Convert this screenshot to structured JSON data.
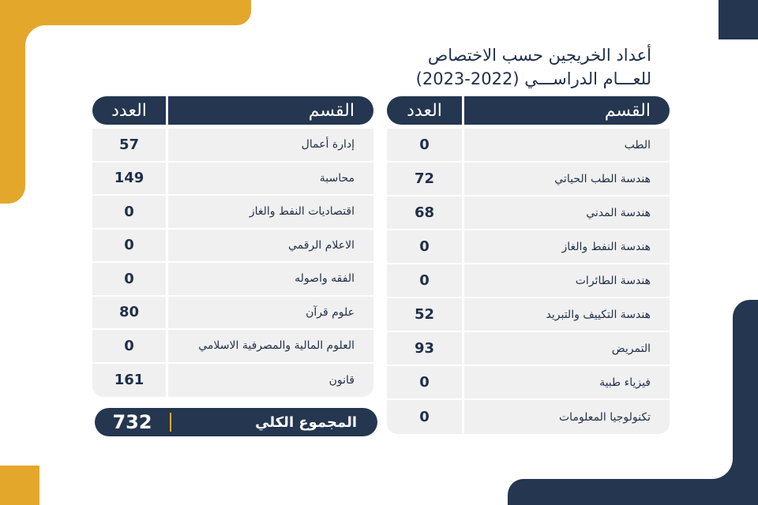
{
  "title": [
    "أعداد الخريجين حسب الاختصاص",
    "للعـــام الدراســـي (2022-2023)"
  ],
  "tables": [
    {
      "headers": [
        "القسم",
        "العدد"
      ],
      "rows": [
        [
          "الطب",
          0
        ],
        [
          "هندسة الطب الحياتي",
          72
        ],
        [
          "هندسة المدني",
          68
        ],
        [
          "هندسة النفط والغاز",
          0
        ],
        [
          "هندسة الطائرات",
          0
        ],
        [
          "هندسة التكييف والتبريد",
          52
        ],
        [
          "التمريض",
          93
        ],
        [
          "فيزياء طبية",
          0
        ],
        [
          "تكنولوجيا المعلومات",
          0
        ]
      ]
    },
    {
      "headers": [
        "القسم",
        "العدد"
      ],
      "rows": [
        [
          "إدارة أعمال",
          57
        ],
        [
          "محاسبة",
          149
        ],
        [
          "اقتصاديات النفط والغاز",
          0
        ],
        [
          "الاعلام الرقمي",
          0
        ],
        [
          "الفقه واصوله",
          0
        ],
        [
          "علوم قرآن",
          80
        ],
        [
          "العلوم المالية والمصرفية الاسلامي",
          0
        ],
        [
          "قانون",
          161
        ]
      ]
    }
  ],
  "total": {
    "label": "المجموع الكلي",
    "value": 732
  }
}
